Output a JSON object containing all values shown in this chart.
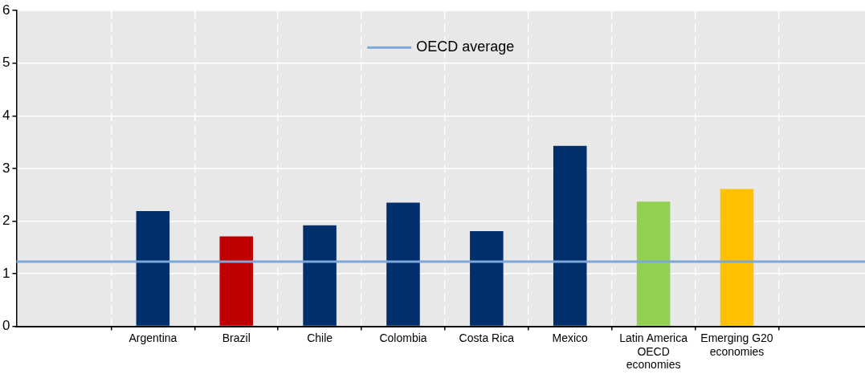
{
  "chart_data": {
    "type": "bar",
    "categories": [
      "Argentina",
      "Brazil",
      "Chile",
      "Colombia",
      "Costa Rica",
      "Mexico",
      "Latin America OECD economies",
      "Emerging G20 economies"
    ],
    "values": [
      2.19,
      1.71,
      1.92,
      2.35,
      1.81,
      3.43,
      2.37,
      2.61
    ],
    "colors": [
      "#002f6c",
      "#c00000",
      "#002f6c",
      "#002f6c",
      "#002f6c",
      "#002f6c",
      "#92d050",
      "#ffc000"
    ],
    "ylim": [
      0,
      6
    ],
    "yticks": [
      0,
      1,
      2,
      3,
      4,
      5,
      6
    ],
    "grid": true,
    "legend": "top",
    "ref_lines": [
      {
        "axis": "y",
        "value": 1.23,
        "label": "OECD average",
        "color": "#7da7d9"
      }
    ]
  }
}
